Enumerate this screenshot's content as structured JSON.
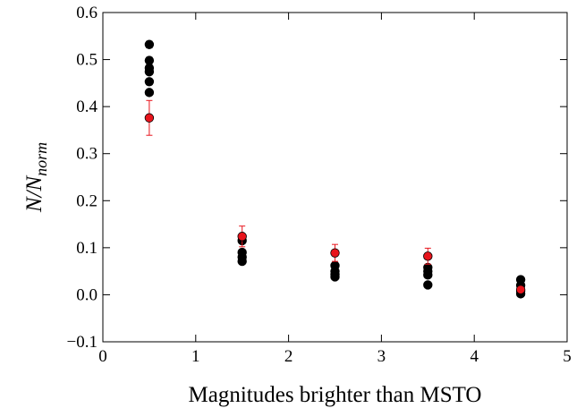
{
  "chart_data": {
    "type": "scatter",
    "title": "",
    "xlabel": "Magnitudes brighter than MSTO",
    "ylabel": {
      "main": "N/N",
      "sub": "norm"
    },
    "xlim": [
      0,
      5
    ],
    "ylim": [
      -0.1,
      0.6
    ],
    "xticks": [
      0,
      1,
      2,
      3,
      4,
      5
    ],
    "xtick_labels": [
      "0",
      "1",
      "2",
      "3",
      "4",
      "5"
    ],
    "yticks": [
      -0.1,
      0.0,
      0.1,
      0.2,
      0.3,
      0.4,
      0.5,
      0.6
    ],
    "ytick_labels": [
      "−0.1",
      "0.0",
      "0.1",
      "0.2",
      "0.3",
      "0.4",
      "0.5",
      "0.6"
    ],
    "grid": false,
    "legend": "none",
    "series": [
      {
        "color": "#000000",
        "points": [
          {
            "x": 0.5,
            "y": 0.532,
            "err": 0.007
          },
          {
            "x": 0.5,
            "y": 0.498,
            "err": 0.007
          },
          {
            "x": 0.5,
            "y": 0.482,
            "err": 0.006
          },
          {
            "x": 0.5,
            "y": 0.474,
            "err": 0.006
          },
          {
            "x": 0.5,
            "y": 0.453,
            "err": 0.006
          },
          {
            "x": 0.5,
            "y": 0.43,
            "err": 0.006
          },
          {
            "x": 1.5,
            "y": 0.115,
            "err": 0.006
          },
          {
            "x": 1.5,
            "y": 0.09,
            "err": 0.005
          },
          {
            "x": 1.5,
            "y": 0.08,
            "err": 0.005
          },
          {
            "x": 1.5,
            "y": 0.071,
            "err": 0.005
          },
          {
            "x": 2.5,
            "y": 0.062,
            "err": 0.005
          },
          {
            "x": 2.5,
            "y": 0.05,
            "err": 0.004
          },
          {
            "x": 2.5,
            "y": 0.043,
            "err": 0.004
          },
          {
            "x": 2.5,
            "y": 0.038,
            "err": 0.004
          },
          {
            "x": 3.5,
            "y": 0.058,
            "err": 0.004
          },
          {
            "x": 3.5,
            "y": 0.05,
            "err": 0.004
          },
          {
            "x": 3.5,
            "y": 0.042,
            "err": 0.004
          },
          {
            "x": 3.5,
            "y": 0.021,
            "err": 0.003
          },
          {
            "x": 4.5,
            "y": 0.032,
            "err": 0.003
          },
          {
            "x": 4.5,
            "y": 0.02,
            "err": 0.003
          },
          {
            "x": 4.5,
            "y": 0.008,
            "err": 0.002
          },
          {
            "x": 4.5,
            "y": 0.002,
            "err": 0.002
          }
        ]
      },
      {
        "color": "#e8141c",
        "points": [
          {
            "x": 0.5,
            "y": 0.376,
            "err": 0.037
          },
          {
            "x": 1.5,
            "y": 0.124,
            "err": 0.022
          },
          {
            "x": 2.5,
            "y": 0.089,
            "err": 0.018
          },
          {
            "x": 3.5,
            "y": 0.082,
            "err": 0.017
          },
          {
            "x": 4.5,
            "y": 0.011,
            "err": 0.006
          }
        ]
      }
    ]
  }
}
